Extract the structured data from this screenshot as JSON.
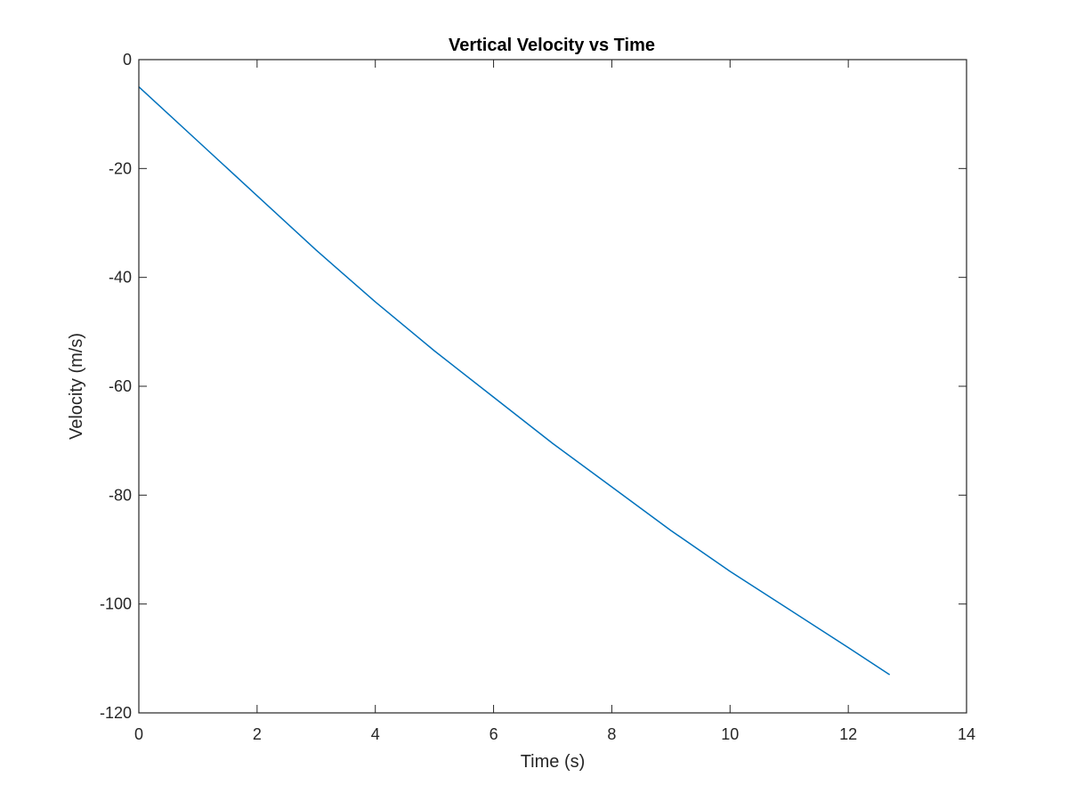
{
  "chart_data": {
    "type": "line",
    "title": "Vertical Velocity vs Time",
    "xlabel": "Time (s)",
    "ylabel": "Velocity (m/s)",
    "xlim": [
      0,
      14
    ],
    "ylim": [
      -120,
      0
    ],
    "xticks": [
      0,
      2,
      4,
      6,
      8,
      10,
      12,
      14
    ],
    "yticks": [
      0,
      -20,
      -40,
      -60,
      -80,
      -100,
      -120
    ],
    "grid": false,
    "box": true,
    "series": [
      {
        "color": "#0072BD",
        "x": [
          0,
          1,
          2,
          3,
          4,
          5,
          6,
          7,
          8,
          9,
          10,
          11,
          12,
          12.7
        ],
        "y": [
          -5,
          -15,
          -25,
          -35,
          -44.5,
          -53.5,
          -62,
          -70.5,
          -78.5,
          -86.5,
          -94,
          -101,
          -108,
          -113
        ]
      }
    ]
  }
}
